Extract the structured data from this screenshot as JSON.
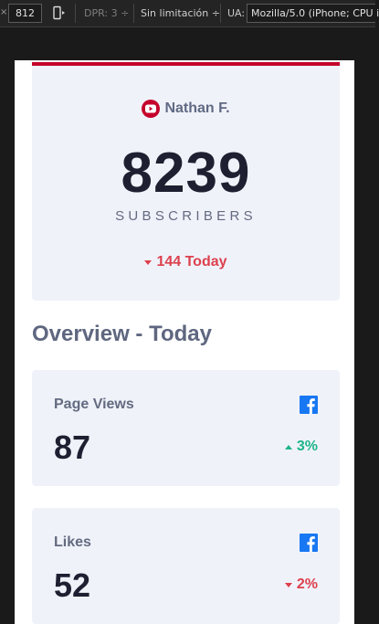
{
  "colors": {
    "brand_red": "#c4032b",
    "decrease": "#dc414c",
    "increase": "#1eb589",
    "facebook": "#1877f2"
  },
  "devtools": {
    "close_glyph": "×",
    "width_value": "812",
    "rotate_icon": "rotate-device-icon",
    "dpr": "DPR: 3 ÷",
    "throttling": "Sin limitación ÷",
    "ua_label": "UA:",
    "ua_value": "Mozilla/5.0 (iPhone; CPU i"
  },
  "dashboard": {
    "hero": {
      "icon": "youtube-icon",
      "username": "Nathan F.",
      "count": "8239",
      "label": "SUBSCRIBERS",
      "change_direction": "down",
      "change_text": "144 Today"
    },
    "section_title": "Overview - Today",
    "cards": [
      {
        "label": "Page Views",
        "icon": "facebook-icon",
        "value": "87",
        "change_direction": "up",
        "change_text": "3%"
      },
      {
        "label": "Likes",
        "icon": "facebook-icon",
        "value": "52",
        "change_direction": "down",
        "change_text": "2%"
      }
    ]
  }
}
